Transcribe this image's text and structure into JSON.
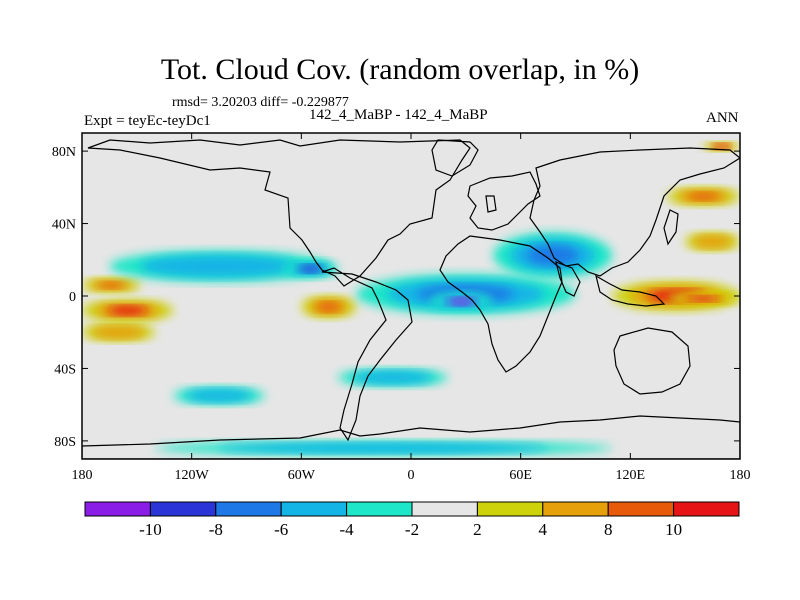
{
  "chart_data": {
    "type": "heatmap",
    "title": "Tot. Cloud Cov. (random overlap, in %)",
    "stats_line": "rmsd= 3.20203 diff= -0.229877",
    "left_label": "Expt = teyEc-teyDc1",
    "center_label": "142_4_MaBP - 142_4_MaBP",
    "right_label": "ANN",
    "x_range": [
      -180,
      180
    ],
    "y_range": [
      -90,
      90
    ],
    "x_ticks": [
      {
        "value": -180,
        "label": "180"
      },
      {
        "value": -120,
        "label": "120W"
      },
      {
        "value": -60,
        "label": "60W"
      },
      {
        "value": 0,
        "label": "0"
      },
      {
        "value": 60,
        "label": "60E"
      },
      {
        "value": 120,
        "label": "120E"
      },
      {
        "value": 180,
        "label": "180"
      }
    ],
    "y_ticks": [
      {
        "value": 80,
        "label": "80N"
      },
      {
        "value": 40,
        "label": "40N"
      },
      {
        "value": 0,
        "label": "0"
      },
      {
        "value": -40,
        "label": "40S"
      },
      {
        "value": -80,
        "label": "80S"
      }
    ],
    "levels": [
      -10,
      -8,
      -6,
      -4,
      -2,
      2,
      4,
      8,
      10
    ],
    "level_labels": [
      "-10",
      "-8",
      "-6",
      "-4",
      "-2",
      "2",
      "4",
      "8",
      "10"
    ],
    "colors": [
      "#8a1ee6",
      "#2b34d6",
      "#1e78e6",
      "#14b4e6",
      "#1ee6c8",
      "#e6e6e6",
      "#cdd20a",
      "#e6a00a",
      "#e65a0a",
      "#e61414"
    ],
    "features": [
      {
        "name": "equatorial-west-pacific-positive",
        "lon": [
          -180,
          -130
        ],
        "lat": [
          -14,
          -2
        ],
        "level": 10
      },
      {
        "name": "equatorial-north-pacific-positive",
        "lon": [
          -180,
          -148
        ],
        "lat": [
          2,
          10
        ],
        "level": 8
      },
      {
        "name": "south-pacific-band",
        "lon": [
          -180,
          -140
        ],
        "lat": [
          -25,
          -15
        ],
        "level": 4
      },
      {
        "name": "nh-tropical-negative-band",
        "lon": [
          -165,
          -45
        ],
        "lat": [
          8,
          25
        ],
        "level": -4
      },
      {
        "name": "central-america-negative",
        "lon": [
          -70,
          -40
        ],
        "lat": [
          10,
          20
        ],
        "level": -8
      },
      {
        "name": "south-america-positive",
        "lon": [
          -60,
          -30
        ],
        "lat": [
          -12,
          0
        ],
        "level": 8
      },
      {
        "name": "africa-indian-negative",
        "lon": [
          -30,
          90
        ],
        "lat": [
          -10,
          12
        ],
        "level": -6
      },
      {
        "name": "africa-core-negative",
        "lon": [
          10,
          45
        ],
        "lat": [
          -8,
          2
        ],
        "level": -10
      },
      {
        "name": "asia-negative",
        "lon": [
          45,
          110
        ],
        "lat": [
          10,
          35
        ],
        "level": -6
      },
      {
        "name": "west-pacific-positive",
        "lon": [
          110,
          180
        ],
        "lat": [
          -8,
          8
        ],
        "level": 10
      },
      {
        "name": "east-pacific-positive",
        "lon": [
          140,
          180
        ],
        "lat": [
          -5,
          2
        ],
        "level": 10
      },
      {
        "name": "north-pacific-positive",
        "lon": [
          140,
          180
        ],
        "lat": [
          50,
          60
        ],
        "level": 8
      },
      {
        "name": "north-pacific-band",
        "lon": [
          150,
          180
        ],
        "lat": [
          25,
          35
        ],
        "level": 4
      },
      {
        "name": "southern-ocean-negative",
        "lon": [
          -130,
          -80
        ],
        "lat": [
          -60,
          -50
        ],
        "level": -4
      },
      {
        "name": "southern-ocean-negative-2",
        "lon": [
          -40,
          20
        ],
        "lat": [
          -50,
          -40
        ],
        "level": -4
      },
      {
        "name": "antarctic-negative",
        "lon": [
          -140,
          110
        ],
        "lat": [
          -88,
          -80
        ],
        "level": -4
      },
      {
        "name": "arctic-positive",
        "lon": [
          160,
          180
        ],
        "lat": [
          80,
          85
        ],
        "level": 10
      }
    ]
  }
}
